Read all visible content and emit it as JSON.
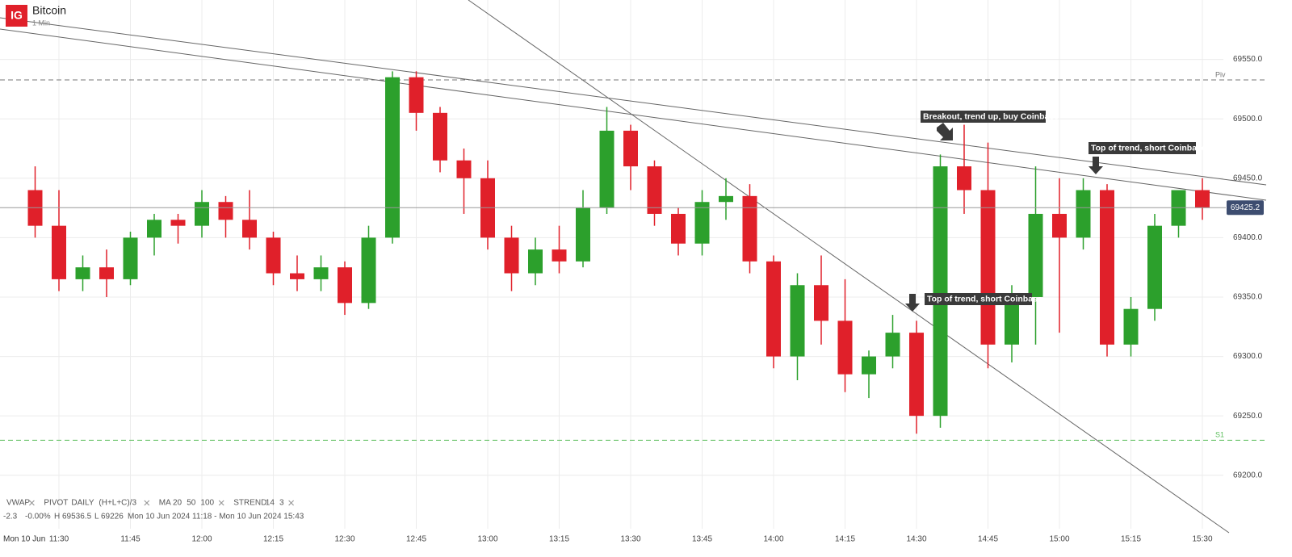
{
  "header": {
    "logo": "IG",
    "title": "Bitcoin",
    "interval": "1 Min"
  },
  "footer": {
    "indicators": [
      {
        "name": "VWAP",
        "params": []
      },
      {
        "name": "PIVOT",
        "params": [
          "DAILY",
          "(H+L+C)/3"
        ]
      },
      {
        "name": "MA",
        "params": [
          "20",
          "50",
          "100"
        ],
        "param_colors": [
          "#2ca02c",
          "#333333",
          "#e0202a"
        ]
      },
      {
        "name": "STREND",
        "params": [
          "14",
          "3"
        ]
      }
    ],
    "change": "-2.3",
    "change_pct": "-0.00%",
    "high": "H 69536.5",
    "low": "L 69226",
    "range": "Mon 10 Jun 2024 11:18 - Mon 10 Jun 2024 15:43"
  },
  "chart_data": {
    "type": "candlestick",
    "date_label": "Mon 10 Jun",
    "categories": [
      null,
      "11:30",
      null,
      null,
      "11:45",
      null,
      null,
      "12:00",
      null,
      null,
      "12:15",
      null,
      null,
      "12:30",
      null,
      null,
      "12:45",
      null,
      null,
      "13:00",
      null,
      null,
      "13:15",
      null,
      null,
      "13:30",
      null,
      null,
      "13:45",
      null,
      null,
      "14:00",
      null,
      null,
      "14:15",
      null,
      null,
      "14:30",
      null,
      null,
      "14:45",
      null,
      null,
      "15:00",
      null,
      null,
      "15:15",
      null,
      null,
      "15:30"
    ],
    "open": [
      69440,
      69410,
      69365,
      69375,
      69365,
      69400,
      69415,
      69410,
      69430,
      69415,
      69400,
      69370,
      69365,
      69375,
      69345,
      69400,
      69535,
      69505,
      69465,
      69450,
      69400,
      69370,
      69390,
      69380,
      69425,
      69490,
      69460,
      69420,
      69395,
      69430,
      69435,
      69380,
      69300,
      69360,
      69330,
      69285,
      69300,
      69320,
      69250,
      69460,
      69440,
      69310,
      69350,
      69420,
      69400,
      69440,
      69310,
      69340,
      69410,
      69440
    ],
    "high": [
      69460,
      69440,
      69385,
      69390,
      69405,
      69420,
      69420,
      69440,
      69435,
      69440,
      69405,
      69385,
      69385,
      69380,
      69410,
      69540,
      69540,
      69510,
      69475,
      69465,
      69410,
      69400,
      69410,
      69440,
      69510,
      69495,
      69465,
      69425,
      69440,
      69450,
      69445,
      69385,
      69370,
      69385,
      69365,
      69305,
      69335,
      69330,
      69470,
      69495,
      69480,
      69360,
      69460,
      69450,
      69450,
      69445,
      69350,
      69420,
      69440,
      69450
    ],
    "low": [
      69400,
      69355,
      69355,
      69350,
      69360,
      69385,
      69395,
      69400,
      69400,
      69390,
      69360,
      69355,
      69355,
      69335,
      69340,
      69395,
      69490,
      69455,
      69420,
      69390,
      69355,
      69360,
      69370,
      69375,
      69420,
      69440,
      69410,
      69385,
      69385,
      69415,
      69370,
      69290,
      69280,
      69310,
      69270,
      69265,
      69290,
      69235,
      69240,
      69420,
      69290,
      69295,
      69310,
      69320,
      69390,
      69300,
      69300,
      69330,
      69400,
      69415
    ],
    "close": [
      69410,
      69365,
      69375,
      69365,
      69400,
      69415,
      69410,
      69430,
      69415,
      69400,
      69370,
      69365,
      69375,
      69345,
      69400,
      69535,
      69505,
      69465,
      69450,
      69400,
      69370,
      69390,
      69380,
      69425,
      69490,
      69460,
      69420,
      69395,
      69430,
      69435,
      69380,
      69300,
      69360,
      69330,
      69285,
      69300,
      69320,
      69250,
      69460,
      69440,
      69310,
      69350,
      69420,
      69400,
      69440,
      69310,
      69340,
      69410,
      69440,
      69425.2
    ],
    "up_color": "#2ca02c",
    "down_color": "#e0202a",
    "ylim": [
      69155,
      69600
    ],
    "yticks": [
      {
        "value": 69200,
        "label": "69200.0"
      },
      {
        "value": 69250,
        "label": "69250.0"
      },
      {
        "value": 69300,
        "label": "69300.0"
      },
      {
        "value": 69350,
        "label": "69350.0"
      },
      {
        "value": 69400,
        "label": "69400.0"
      },
      {
        "value": 69450,
        "label": "69450.0"
      },
      {
        "value": 69500,
        "label": "69500.0"
      },
      {
        "value": 69550,
        "label": "69550.0"
      }
    ],
    "grid": true,
    "levels": [
      {
        "label": "Piv",
        "value": 69532.7,
        "color": "#777777"
      },
      {
        "label": "S1",
        "value": 69229.5,
        "color": "#5cbf5c"
      }
    ],
    "annotations": [
      {
        "text": "Breakout, trend up, buy Coinbase"
      },
      {
        "text": "Top of trend, short Coinbase"
      },
      {
        "text": "Top of trend, short Coinbase"
      }
    ]
  }
}
